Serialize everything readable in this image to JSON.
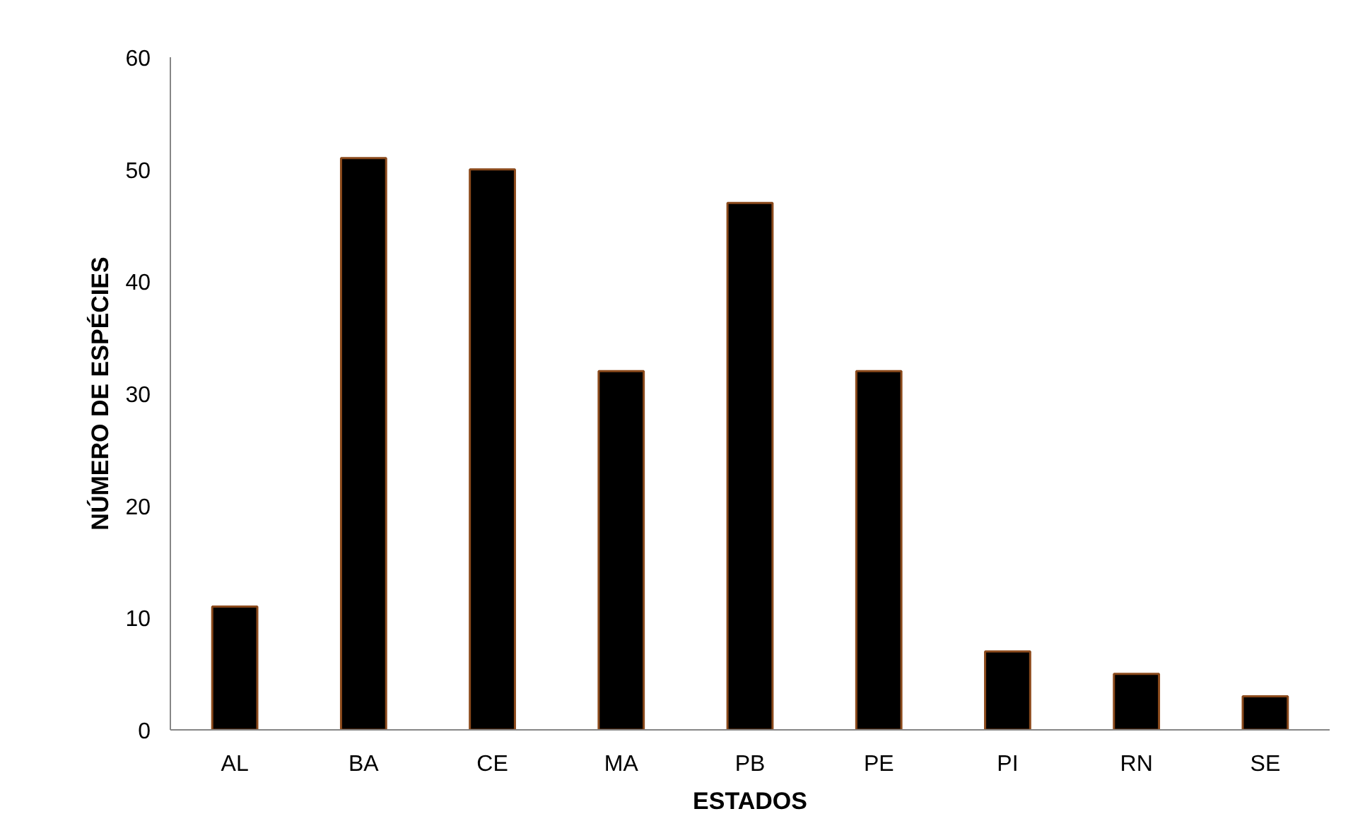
{
  "chart_data": {
    "type": "bar",
    "xlabel": "ESTADOS",
    "ylabel": "NÚMERO DE ESPÉCIES",
    "categories": [
      "AL",
      "BA",
      "CE",
      "MA",
      "PB",
      "PE",
      "PI",
      "RN",
      "SE"
    ],
    "values": [
      11,
      51,
      50,
      32,
      47,
      32,
      7,
      5,
      3
    ],
    "color": "#000000",
    "ylim": [
      0,
      60
    ],
    "yticks": [
      0,
      10,
      20,
      30,
      40,
      50,
      60
    ],
    "grid": false
  }
}
